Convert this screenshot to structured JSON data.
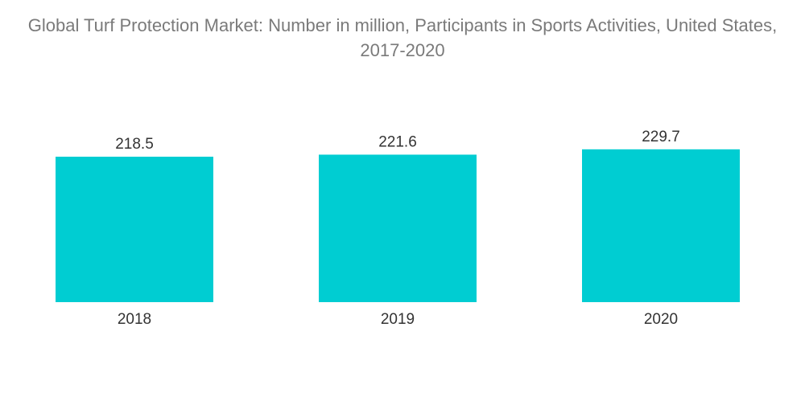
{
  "chart_data": {
    "type": "bar",
    "title": "Global Turf Protection Market: Number in million, Participants in Sports Activities, United States, 2017-2020",
    "categories": [
      "2018",
      "2019",
      "2020"
    ],
    "values": [
      218.5,
      221.6,
      229.7
    ],
    "value_labels": [
      "218.5",
      "221.6",
      "229.7"
    ],
    "xlabel": "",
    "ylabel": "",
    "grid": false,
    "legend": "none",
    "bar_color": "#00cdd2"
  }
}
